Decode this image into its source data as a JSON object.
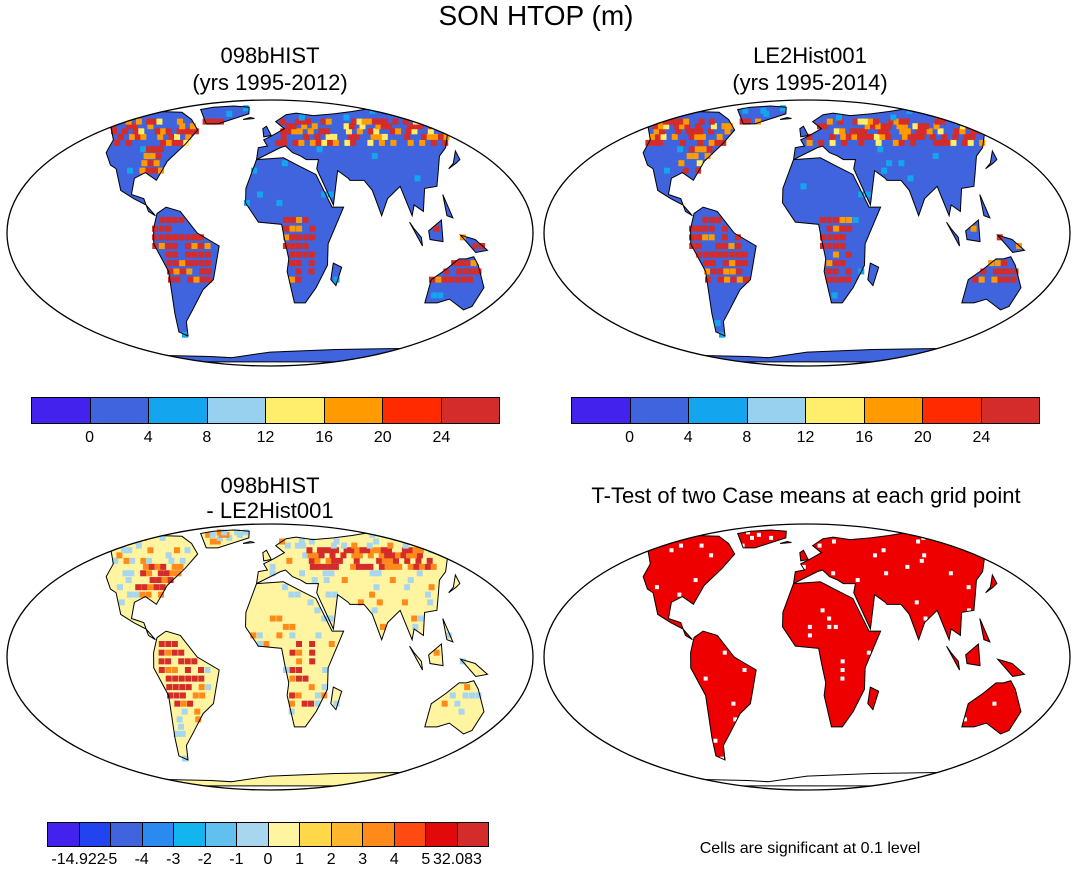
{
  "figure": {
    "title": "SON HTOP (m)"
  },
  "panels": [
    {
      "id": "p1",
      "title_line1": "098bHIST",
      "title_line2": "(yrs 1995-2012)",
      "map_style": "field"
    },
    {
      "id": "p2",
      "title_line1": "LE2Hist001",
      "title_line2": "(yrs 1995-2014)",
      "map_style": "field"
    },
    {
      "id": "p3",
      "title_line1": "098bHIST",
      "title_line2": "- LE2Hist001",
      "map_style": "difference"
    },
    {
      "id": "p4",
      "title_line1": "T-Test of two Case means at each grid point",
      "title_line2": "",
      "map_style": "significance",
      "footnote": "Cells are significant at 0.1 level"
    }
  ],
  "colorbar_top": {
    "colors": [
      "#4422ee",
      "#3f64dd",
      "#13a5ee",
      "#98d0ef",
      "#ffee6b",
      "#ff9a00",
      "#ff2a00",
      "#d42b2b"
    ],
    "tick_labels": [
      "0",
      "4",
      "8",
      "12",
      "16",
      "20",
      "24"
    ]
  },
  "colorbar_bottom": {
    "colors": [
      "#4422ee",
      "#2244ee",
      "#3f64dd",
      "#2a8aef",
      "#13b5ee",
      "#62c0ef",
      "#a8d6ee",
      "#fff4a0",
      "#ffd84a",
      "#ffb52e",
      "#ff8a1a",
      "#ff4a12",
      "#e10a0a",
      "#d42b2b"
    ],
    "tick_labels": [
      "-14.922",
      "-5",
      "-4",
      "-3",
      "-2",
      "-1",
      "0",
      "1",
      "2",
      "3",
      "4",
      "5",
      "32.083"
    ]
  },
  "map_palette": {
    "ocean": "#ffffff",
    "coast": "#000000",
    "field_base": "#3f64dd",
    "field_high": "#d42b2b",
    "field_mid": "#ff9a00",
    "field_yellow": "#ffee6b",
    "field_cyan": "#13a5ee",
    "diff_base": "#fff4a0",
    "diff_high": "#d42b2b",
    "diff_orange": "#ff8a1a",
    "diff_blue": "#a8d6ee",
    "sig_fill": "#ee0000"
  }
}
